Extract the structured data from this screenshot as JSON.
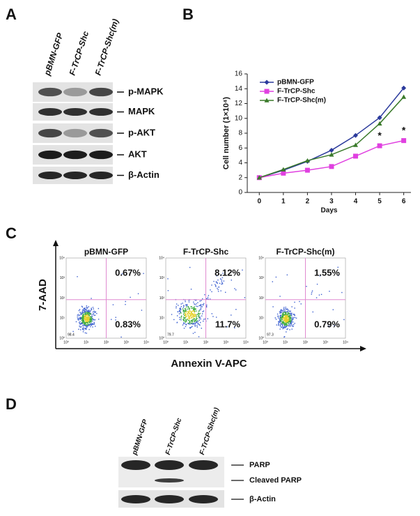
{
  "panel_a": {
    "letter": "A",
    "lanes": [
      "pBMN-GFP",
      "F-TrCP-Shc",
      "F-TrCP-Shc(m)"
    ],
    "bands": [
      "p-MAPK",
      "MAPK",
      "p-AKT",
      "AKT",
      "β-Actin"
    ]
  },
  "chart_data": {
    "letter": "B",
    "type": "line",
    "x": [
      0,
      1,
      2,
      3,
      4,
      5,
      6
    ],
    "xlim": [
      -0.5,
      6.3
    ],
    "xticks": [
      0,
      1,
      2,
      3,
      4,
      5,
      6
    ],
    "ylim": [
      0,
      16
    ],
    "yticks": [
      0,
      2,
      4,
      6,
      8,
      10,
      12,
      14,
      16
    ],
    "x_label": "Days",
    "y_label": "Cell number (1×10⁴)",
    "legend": "upper left",
    "series": [
      {
        "name": "pBMN-GFP",
        "color": "#2b3a9c",
        "marker": "diamond",
        "values": [
          2.0,
          3.0,
          4.2,
          5.7,
          7.7,
          10.1,
          14.1
        ]
      },
      {
        "name": "F-TrCP-Shc",
        "color": "#e040e0",
        "marker": "square",
        "values": [
          2.0,
          2.6,
          3.0,
          3.5,
          4.9,
          6.3,
          7.0
        ]
      },
      {
        "name": "F-TrCP-Shc(m)",
        "color": "#3a7a2a",
        "marker": "triangle",
        "values": [
          2.0,
          3.1,
          4.3,
          5.1,
          6.4,
          9.3,
          12.9
        ]
      }
    ],
    "annotations": [
      {
        "text": "*",
        "x": 5
      },
      {
        "text": "*",
        "x": 6
      }
    ]
  },
  "panel_c": {
    "letter": "C",
    "y_label": "7-AAD",
    "x_label": "Annexin V-APC",
    "axis_ticks": [
      "10⁰",
      "10¹",
      "10²",
      "10³",
      "10⁴"
    ],
    "plots": [
      {
        "title": "pBMN-GFP",
        "upper_right": "0.67%",
        "lower_right": "0.83%",
        "lower_left": "98.4"
      },
      {
        "title": "F-TrCP-Shc",
        "upper_right": "8.12%",
        "lower_right": "11.7%",
        "lower_left": "79.7"
      },
      {
        "title": "F-TrCP-Shc(m)",
        "upper_right": "1.55%",
        "lower_right": "0.79%",
        "lower_left": "97.3"
      }
    ]
  },
  "panel_d": {
    "letter": "D",
    "lanes": [
      "pBMN-GFP",
      "F-TrCP-Shc",
      "F-TrCP-Shc(m)"
    ],
    "bands": [
      "PARP",
      "Cleaved PARP",
      "β-Actin"
    ]
  }
}
